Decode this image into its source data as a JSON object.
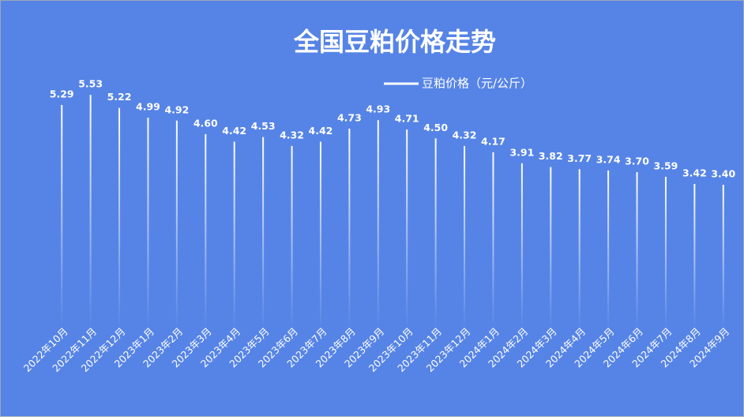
{
  "chart_data": {
    "type": "bar",
    "title": "全国豆粕价格走势",
    "legend": "豆粕价格（元/公斤）",
    "categories": [
      "2022年10月",
      "2022年11月",
      "2022年12月",
      "2023年1月",
      "2023年2月",
      "2023年3月",
      "2023年4月",
      "2023年5月",
      "2023年6月",
      "2023年7月",
      "2023年8月",
      "2023年9月",
      "2023年10月",
      "2023年11月",
      "2023年12月",
      "2024年1月",
      "2024年2月",
      "2024年3月",
      "2024年4月",
      "2024年5月",
      "2024年6月",
      "2024年7月",
      "2024年8月",
      "2024年9月"
    ],
    "values": [
      5.29,
      5.53,
      5.22,
      4.99,
      4.92,
      4.6,
      4.42,
      4.53,
      4.32,
      4.42,
      4.73,
      4.93,
      4.71,
      4.5,
      4.32,
      4.17,
      3.91,
      3.82,
      3.77,
      3.74,
      3.7,
      3.59,
      3.42,
      3.4
    ],
    "value_labels": [
      "5.29",
      "5.53",
      "5.22",
      "4.99",
      "4.92",
      "4.60",
      "4.42",
      "4.53",
      "4.32",
      "4.42",
      "4.73",
      "4.93",
      "4.71",
      "4.50",
      "4.32",
      "4.17",
      "3.91",
      "3.82",
      "3.77",
      "3.74",
      "3.70",
      "3.59",
      "3.42",
      "3.40"
    ],
    "color": "#ffffff",
    "background": "#5684e6",
    "ylim": [
      0,
      6
    ]
  }
}
